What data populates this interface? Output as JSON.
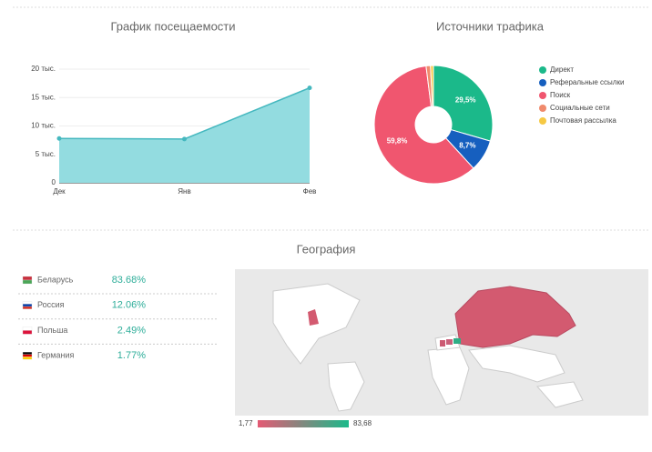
{
  "chart_data": [
    {
      "type": "line",
      "title": "График посещаемости",
      "categories": [
        "Дек",
        "Янв",
        "Фев"
      ],
      "values": [
        7.8,
        7.7,
        16.7
      ],
      "color": "#45b8bf",
      "fill": "#93dce0",
      "ylim": [
        0,
        20
      ],
      "yticks": [
        0,
        {
          "value": 5,
          "label": "5 тыс."
        },
        {
          "value": 10,
          "label": "10 тыс."
        },
        {
          "value": 15,
          "label": "15 тыс."
        },
        {
          "value": 20,
          "label": "20 тыс."
        }
      ]
    },
    {
      "type": "pie",
      "title": "Источники трафика",
      "categories": [
        "Директ",
        "Реферальные ссылки",
        "Поиск",
        "Социальные сети",
        "Почтовая рассылка"
      ],
      "values": [
        29.5,
        8.7,
        59.8,
        1.2,
        0.8
      ],
      "value_labels": [
        "29,5%",
        "8,7%",
        "59,8%",
        null,
        null
      ],
      "colors": [
        "#1bb98a",
        "#165fbf",
        "#f0566f",
        "#f08a6c",
        "#f6c944"
      ]
    }
  ],
  "geography": {
    "title": "География",
    "rows": [
      {
        "country": "Беларусь",
        "share": "83.68%"
      },
      {
        "country": "Россия",
        "share": "12.06%"
      },
      {
        "country": "Польша",
        "share": "2.49%"
      },
      {
        "country": "Германия",
        "share": "1.77%"
      }
    ],
    "scale": [
      {
        "value": 1.77,
        "label": "1,77"
      },
      {
        "value": 83.68,
        "label": "83,68"
      }
    ]
  }
}
